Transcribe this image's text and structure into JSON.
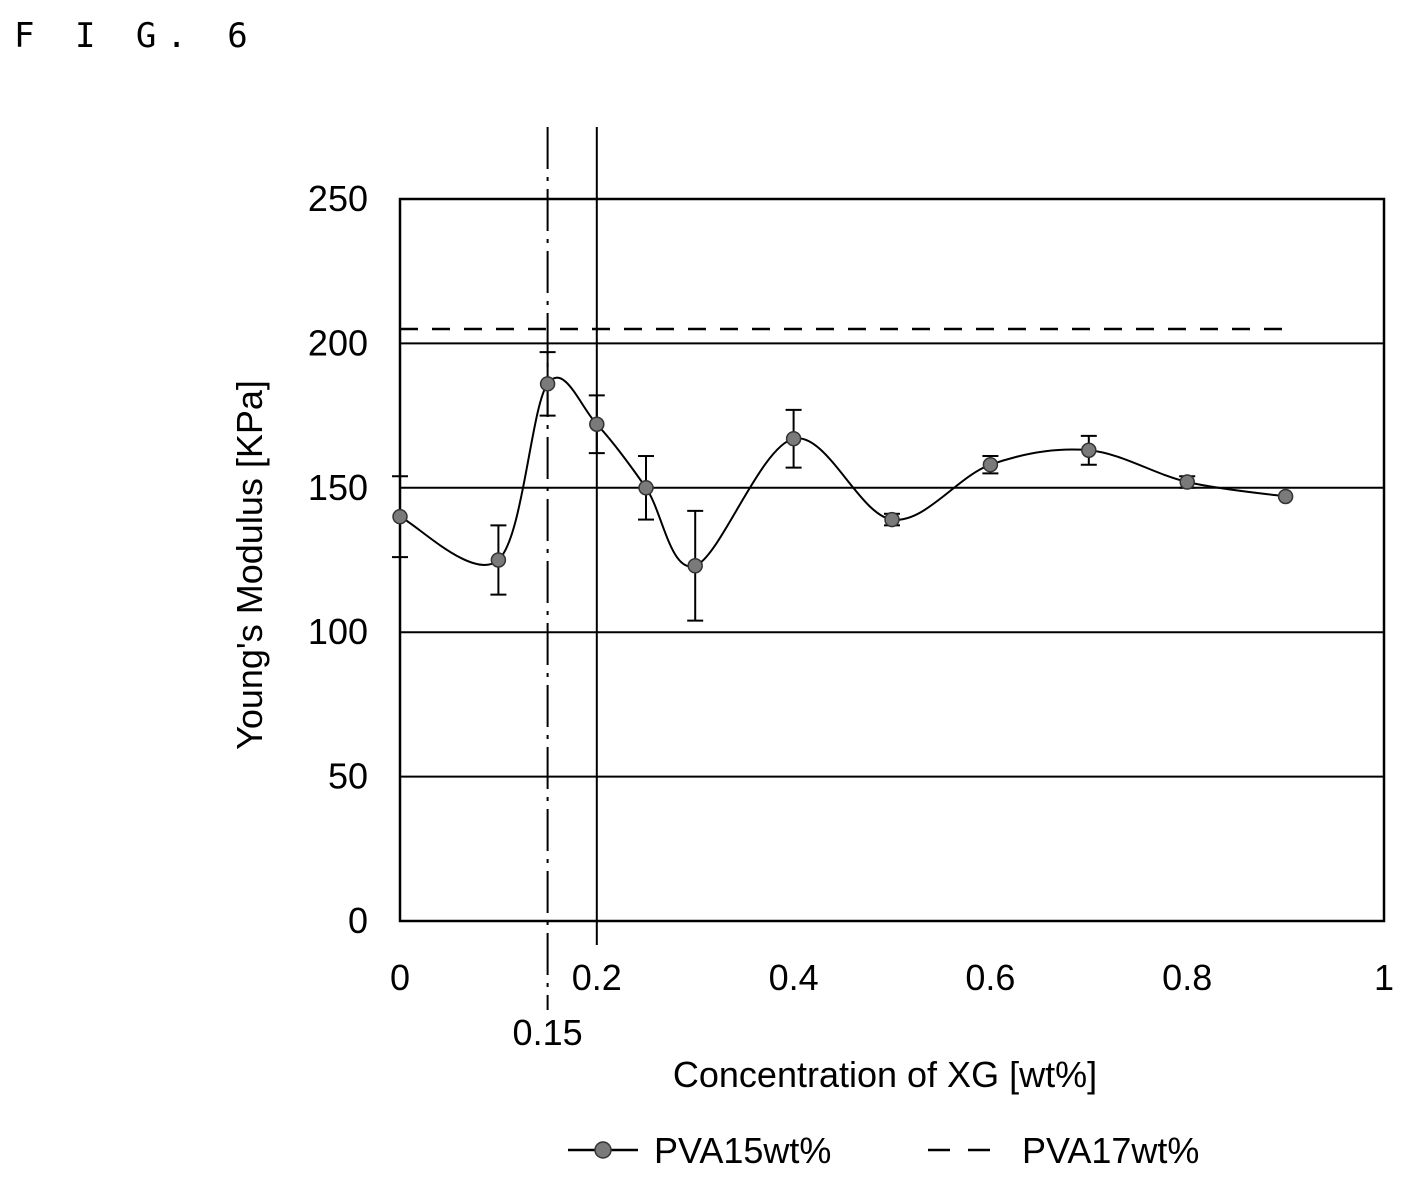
{
  "figure_label": "F I G. 6",
  "chart_data": {
    "type": "line",
    "title": "",
    "xlabel": "Concentration of XG [wt%]",
    "ylabel": "Young's Modulus [KPa]",
    "xlim": [
      0,
      1
    ],
    "ylim": [
      0,
      250
    ],
    "x_ticks": [
      "0",
      "0.2",
      "0.4",
      "0.6",
      "0.8",
      "1"
    ],
    "y_ticks": [
      "0",
      "50",
      "100",
      "150",
      "200",
      "250"
    ],
    "grid": "horizontal",
    "legend_position": "bottom",
    "reference_lines": [
      {
        "x": 0.15,
        "style": "dash-dot",
        "label": "0.15"
      },
      {
        "x": 0.2,
        "style": "solid",
        "label": ""
      }
    ],
    "series": [
      {
        "name": "PVA15wt%",
        "style": "smooth-line-with-markers",
        "color": "#000000",
        "marker_color": "#7a7a7a",
        "points": [
          {
            "x": 0,
            "y": 140,
            "err": 14
          },
          {
            "x": 0.1,
            "y": 125,
            "err": 12
          },
          {
            "x": 0.15,
            "y": 186,
            "err": 11
          },
          {
            "x": 0.2,
            "y": 172,
            "err": 10
          },
          {
            "x": 0.25,
            "y": 150,
            "err": 11
          },
          {
            "x": 0.3,
            "y": 123,
            "err": 19
          },
          {
            "x": 0.4,
            "y": 167,
            "err": 10
          },
          {
            "x": 0.5,
            "y": 139,
            "err": 2
          },
          {
            "x": 0.6,
            "y": 158,
            "err": 3
          },
          {
            "x": 0.7,
            "y": 163,
            "err": 5
          },
          {
            "x": 0.8,
            "y": 152,
            "err": 2
          },
          {
            "x": 0.9,
            "y": 147,
            "err": 0
          }
        ]
      },
      {
        "name": "PVA17wt%",
        "style": "dashed",
        "color": "#000000",
        "points": [
          {
            "x": 0,
            "y": 205
          },
          {
            "x": 0.9,
            "y": 205
          }
        ]
      }
    ]
  }
}
